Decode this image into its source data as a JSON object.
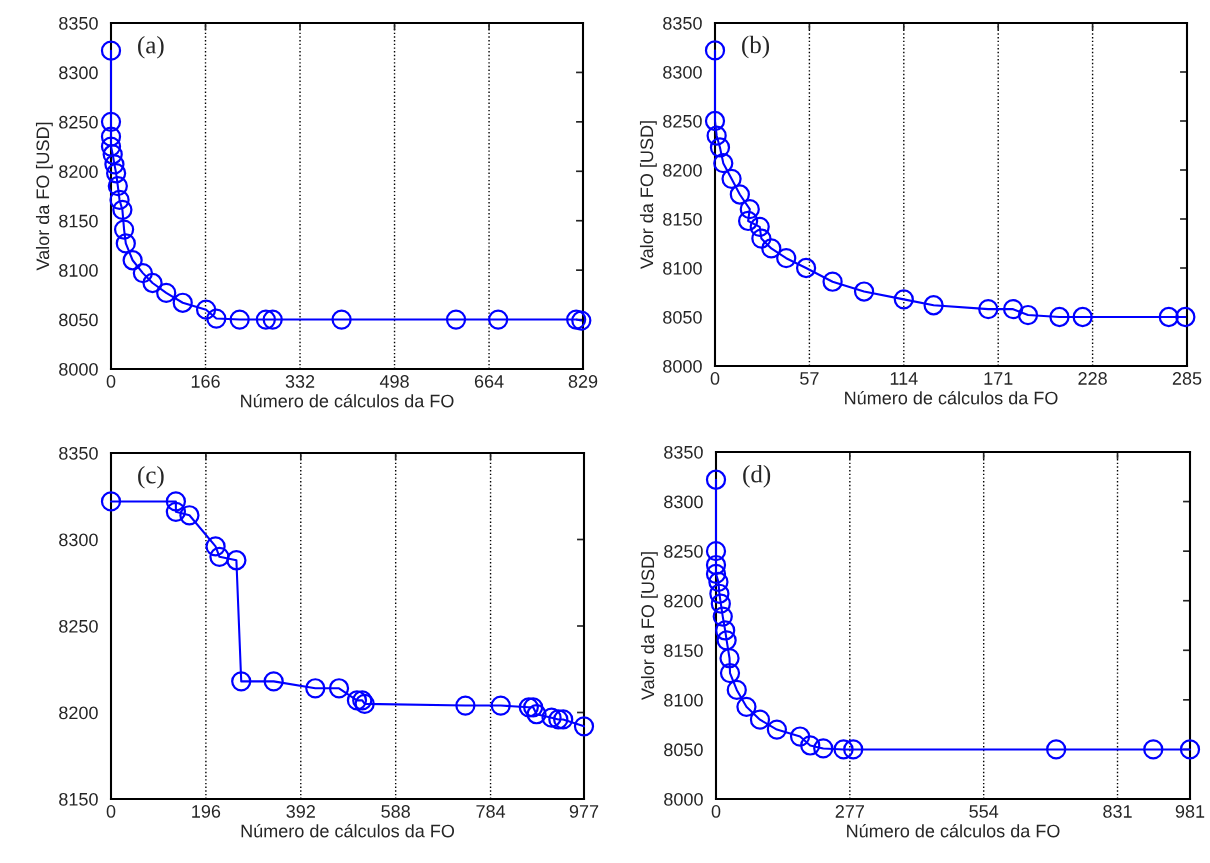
{
  "chart_data": [
    {
      "type": "line",
      "xlabel": "Número de cálculos da FO",
      "ylabel": "Valor da FO [USD]",
      "annotations": [
        "(a)"
      ],
      "xlim": [
        0,
        829
      ],
      "xticks": [
        0,
        166,
        332,
        498,
        664,
        829
      ],
      "ylim": [
        8000,
        8350
      ],
      "yticks": [
        8000,
        8050,
        8100,
        8150,
        8200,
        8250,
        8300,
        8350
      ],
      "grid": "x",
      "marker": "circle",
      "line_style": "solid",
      "series": [
        {
          "color": "#0000ff",
          "x": [
            0,
            0,
            0,
            0,
            3,
            6,
            9,
            12,
            15,
            20,
            23,
            26,
            38,
            56,
            73,
            97,
            126,
            167,
            185,
            226,
            272,
            284,
            405,
            606,
            680,
            817,
            826
          ],
          "values": [
            8322,
            8250,
            8235,
            8225,
            8217,
            8207,
            8198,
            8185,
            8171,
            8161,
            8141,
            8127,
            8110,
            8097,
            8087,
            8077,
            8067,
            8060,
            8051,
            8050,
            8050,
            8050,
            8050,
            8050,
            8050,
            8050,
            8049
          ]
        }
      ]
    },
    {
      "type": "line",
      "xlabel": "Número de cálculos da FO",
      "ylabel": "Valor da FO [USD]",
      "annotations": [
        "(b)"
      ],
      "xlim": [
        0,
        285
      ],
      "xticks": [
        0,
        57,
        114,
        171,
        228,
        285
      ],
      "ylim": [
        8000,
        8350
      ],
      "yticks": [
        8000,
        8050,
        8100,
        8150,
        8200,
        8250,
        8300,
        8350
      ],
      "grid": "x",
      "marker": "circle",
      "line_style": "solid",
      "series": [
        {
          "color": "#0000ff",
          "x": [
            0,
            0,
            1,
            3,
            5,
            10,
            15,
            21,
            20,
            27,
            28,
            34,
            43,
            55,
            71,
            90,
            114,
            132,
            165,
            180,
            189,
            208,
            222,
            274,
            284
          ],
          "values": [
            8322,
            8250,
            8235,
            8223,
            8207,
            8191,
            8175,
            8160,
            8148,
            8142,
            8130,
            8120,
            8110,
            8100,
            8086,
            8076,
            8068,
            8062,
            8058,
            8058,
            8052,
            8050,
            8050,
            8050,
            8050
          ]
        }
      ]
    },
    {
      "type": "line",
      "xlabel": "Número de cálculos da FO",
      "annotations": [
        "(c)"
      ],
      "xlim": [
        0,
        977
      ],
      "xticks": [
        0,
        196,
        392,
        588,
        784,
        977
      ],
      "ylim": [
        8150,
        8350
      ],
      "yticks": [
        8150,
        8200,
        8250,
        8300,
        8350
      ],
      "grid": "x",
      "marker": "circle",
      "line_style": "solid",
      "series": [
        {
          "color": "#0000ff",
          "x": [
            0,
            134,
            134,
            162,
            216,
            224,
            259,
            269,
            336,
            422,
            471,
            508,
            519,
            524,
            732,
            805,
            863,
            872,
            879,
            910,
            924,
            934,
            977
          ],
          "values": [
            8322,
            8322,
            8316,
            8314,
            8296,
            8290,
            8288,
            8218,
            8218,
            8214,
            8214,
            8207,
            8207,
            8205,
            8204,
            8204,
            8203,
            8203,
            8199,
            8197,
            8196,
            8196,
            8192
          ]
        }
      ]
    },
    {
      "type": "line",
      "xlabel": "Número de cálculos da FO",
      "ylabel": "Valor da FO [USD]",
      "annotations": [
        "(d)"
      ],
      "xlim": [
        0,
        981
      ],
      "xticks": [
        0,
        277,
        554,
        831,
        981
      ],
      "ylim": [
        8000,
        8350
      ],
      "yticks": [
        8000,
        8050,
        8100,
        8150,
        8200,
        8250,
        8300,
        8350
      ],
      "grid": "x",
      "marker": "circle",
      "line_style": "solid",
      "series": [
        {
          "color": "#0000ff",
          "x": [
            0,
            0,
            0,
            0,
            5,
            7,
            10,
            14,
            19,
            22,
            28,
            29,
            43,
            63,
            91,
            126,
            174,
            195,
            222,
            264,
            284,
            704,
            905,
            981
          ],
          "values": [
            8322,
            8250,
            8236,
            8227,
            8219,
            8207,
            8197,
            8184,
            8170,
            8160,
            8142,
            8127,
            8110,
            8093,
            8080,
            8070,
            8063,
            8054,
            8051,
            8050,
            8050,
            8050,
            8050,
            8050
          ]
        }
      ]
    }
  ]
}
